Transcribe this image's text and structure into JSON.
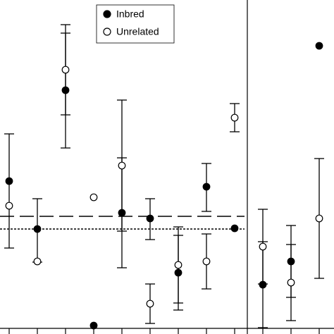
{
  "chart_data": {
    "type": "errorbar",
    "categories": [
      null,
      null,
      null,
      null,
      null,
      null,
      null,
      null,
      null,
      null,
      null,
      null
    ],
    "ylim": [
      0,
      474
    ],
    "reference_lines": [
      {
        "value": 167,
        "style": "dashed"
      },
      {
        "value": 149,
        "style": "dotted"
      }
    ],
    "legend": "top",
    "series": [
      {
        "name": "Inbred",
        "color": "#000000",
        "filled": true,
        "values": [
          217,
          149,
          346,
          12,
          172,
          164,
          87,
          209,
          150,
          70,
          103,
          409
        ],
        "high": [
          284,
          192,
          427,
          null,
          250,
          192,
          140,
          242,
          null,
          131,
          154,
          null
        ],
        "low": [
          122,
          102,
          264,
          null,
          94,
          134,
          34,
          174,
          null,
          9,
          52,
          null
        ]
      },
      {
        "name": "Unrelated",
        "color": "#000000",
        "filled": false,
        "values": [
          182,
          103,
          375,
          194,
          239,
          43,
          98,
          103,
          307,
          124,
          73,
          164
        ],
        "high": [
          null,
          null,
          439,
          null,
          332,
          71,
          152,
          142,
          327,
          177,
          127,
          249
        ],
        "low": [
          null,
          null,
          311,
          null,
          146,
          15,
          44,
          64,
          287,
          71,
          19,
          79
        ]
      }
    ]
  }
}
